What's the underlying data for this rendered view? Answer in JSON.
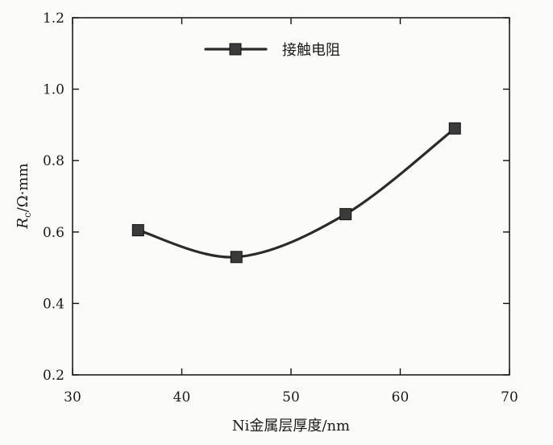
{
  "chart_data": {
    "type": "line",
    "title": "",
    "x": [
      36,
      45,
      55,
      65
    ],
    "series": [
      {
        "name": "接触电阻",
        "values": [
          0.605,
          0.53,
          0.65,
          0.89
        ]
      }
    ],
    "xlabel": "Ni金属层厚度/nm",
    "ylabel": {
      "symbol": "R",
      "subscript": "c",
      "unit": "/Ω·mm"
    },
    "xlim": [
      30,
      70
    ],
    "ylim": [
      0.2,
      1.2
    ],
    "xticks": [
      30,
      40,
      50,
      60,
      70
    ],
    "xticklabels": [
      "30",
      "40",
      "50",
      "60",
      "70"
    ],
    "yticks": [
      0.2,
      0.4,
      0.6,
      0.8,
      1.0,
      1.2
    ],
    "yticklabels": [
      "0.2",
      "0.4",
      "0.6",
      "0.8",
      "1.0",
      "1.2"
    ],
    "grid": false,
    "marker": "square",
    "line_style": "smooth",
    "colors": {
      "line": "#2b2b2b",
      "marker_fill": "#3b3b3b",
      "axis": "#111111"
    }
  }
}
